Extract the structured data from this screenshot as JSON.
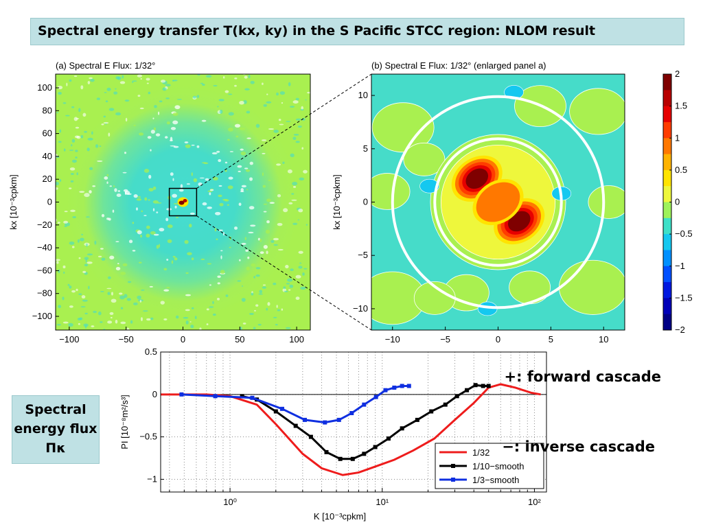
{
  "title": "Spectral energy transfer T(kx, ky) in the S Pacific STCC region: NLOM result",
  "side_label": "Spectral energy flux Πκ",
  "notes": {
    "forward": "+: forward cascade",
    "inverse": "−: inverse cascade"
  },
  "chart_data": [
    {
      "type": "heatmap",
      "title": "(a) Spectral E Flux: 1/32°",
      "xlabel": "",
      "ylabel": "kx [10⁻³cpkm]",
      "xlim": [
        -112,
        112
      ],
      "ylim": [
        -112,
        112
      ],
      "xticks": [
        -100,
        -50,
        0,
        50,
        100
      ],
      "yticks": [
        100,
        80,
        60,
        40,
        20,
        0,
        -20,
        -40,
        -60,
        -80,
        -100
      ],
      "description_values": {
        "background": 0.1,
        "core_region_value_range": [
          -0.3,
          0.1
        ],
        "center_peak": 2.0
      },
      "zoom_box": {
        "x": [
          -12,
          12
        ],
        "y": [
          -12,
          12
        ]
      }
    },
    {
      "type": "heatmap",
      "title": "(b) Spectral E Flux: 1/32° (enlarged panel a)",
      "xlabel": "",
      "ylabel": "kx [10⁻³cpkm]",
      "xlim": [
        -12,
        12
      ],
      "ylim": [
        -12,
        12
      ],
      "xticks": [
        -10,
        -5,
        0,
        5,
        10
      ],
      "yticks": [
        10,
        5,
        0,
        -5,
        -10
      ],
      "colorbar": {
        "ticks": [
          2,
          1.5,
          1,
          0.5,
          0,
          -0.5,
          -1,
          -1.5,
          -2
        ],
        "tick_labels": [
          "2",
          "1.5",
          "1",
          "0.5",
          "0",
          "−0.5",
          "−1",
          "−1.5",
          "−2"
        ],
        "colors": [
          "#7f0000",
          "#b80000",
          "#e60000",
          "#ff3c00",
          "#ff7800",
          "#ffb300",
          "#ffe400",
          "#eef73c",
          "#9ef25a",
          "#3ee0c8",
          "#15c8f0",
          "#0090ff",
          "#0050ff",
          "#0018e0",
          "#0000b8",
          "#000085"
        ]
      },
      "blobs": [
        {
          "x": -2.0,
          "y": 2.2,
          "value": 2.0
        },
        {
          "x": 2.0,
          "y": -1.8,
          "value": 2.0
        },
        {
          "x": 0.0,
          "y": 0.0,
          "value": 0.9
        },
        {
          "x": -6.5,
          "y": 1.5,
          "value": -0.7
        },
        {
          "x": 6.0,
          "y": 0.8,
          "value": -0.7
        },
        {
          "x": 1.5,
          "y": 10.3,
          "value": -0.6
        },
        {
          "x": -1.0,
          "y": -10.0,
          "value": -0.5
        }
      ],
      "circles": [
        {
          "r": 6.0
        },
        {
          "r": 10.0
        }
      ]
    },
    {
      "type": "line",
      "title": "",
      "xlabel": "K [10⁻³cpkm]",
      "ylabel": "PI [10⁻⁸m²/s³]",
      "xscale": "log",
      "xlim": [
        0.35,
        120
      ],
      "ylim": [
        -1.15,
        0.5
      ],
      "xticks": [
        1,
        10,
        100
      ],
      "xtick_labels": [
        "10⁰",
        "10¹",
        "10²"
      ],
      "yticks": [
        0.5,
        0,
        -0.5,
        -1
      ],
      "ytick_labels": [
        "0.5",
        "0",
        "−0.5",
        "−1"
      ],
      "legend": "bottom-right",
      "series": [
        {
          "name": "1/32",
          "color": "#ee1c1c",
          "x": [
            0.35,
            0.7,
            1.0,
            1.5,
            2.0,
            3.0,
            4.0,
            5.5,
            7.0,
            9.0,
            12.0,
            16.0,
            22.0,
            30.0,
            40.0,
            50.0,
            60.0,
            75.0,
            95.0,
            110.0
          ],
          "y": [
            0.0,
            0.0,
            -0.02,
            -0.12,
            -0.35,
            -0.7,
            -0.87,
            -0.95,
            -0.92,
            -0.85,
            -0.77,
            -0.66,
            -0.52,
            -0.3,
            -0.1,
            0.08,
            0.12,
            0.08,
            0.02,
            0.0
          ]
        },
        {
          "name": "1/10-smooth",
          "color": "#000000",
          "x": [
            1.2,
            1.5,
            2.0,
            2.7,
            3.4,
            4.3,
            5.3,
            6.4,
            7.6,
            9.0,
            11.0,
            13.5,
            17.0,
            21.0,
            26.0,
            31.0,
            36.0,
            41.0,
            46.0,
            50.0
          ],
          "y": [
            -0.02,
            -0.06,
            -0.2,
            -0.37,
            -0.5,
            -0.68,
            -0.76,
            -0.76,
            -0.7,
            -0.62,
            -0.52,
            -0.4,
            -0.3,
            -0.2,
            -0.12,
            -0.02,
            0.05,
            0.11,
            0.1,
            0.1
          ]
        },
        {
          "name": "1/3-smooth",
          "color": "#0f2fe0",
          "x": [
            0.48,
            0.8,
            1.4,
            2.2,
            3.1,
            4.2,
            5.2,
            6.3,
            7.6,
            9.1,
            10.5,
            12.0,
            13.5,
            15.0
          ],
          "y": [
            0.0,
            -0.02,
            -0.04,
            -0.17,
            -0.3,
            -0.33,
            -0.3,
            -0.22,
            -0.12,
            -0.03,
            0.05,
            0.08,
            0.1,
            0.1
          ]
        }
      ]
    }
  ]
}
